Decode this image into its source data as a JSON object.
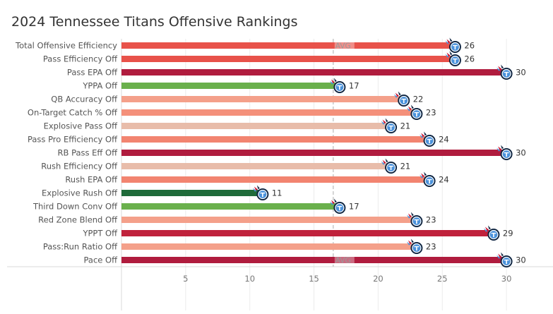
{
  "title": "2024 Tennessee Titans Offensive Rankings",
  "avg_label": "AVG",
  "chart_data": {
    "type": "bar",
    "orientation": "horizontal",
    "title": "2024 Tennessee Titans Offensive Rankings",
    "xlabel": "",
    "ylabel": "",
    "xlim": [
      0,
      32
    ],
    "xticks": [
      5,
      10,
      15,
      20,
      25,
      30
    ],
    "avg_line_value": 16.5,
    "grid": true,
    "categories": [
      "Total Offensive Efficiency",
      "Pass Efficiency Off",
      "Pass EPA Off",
      "YPPA Off",
      "QB Accuracy Off",
      "On-Target Catch % Off",
      "Explosive Pass Off",
      "Pass Pro Efficiency Off",
      "RB Pass Eff Off",
      "Rush Efficiency Off",
      "Rush EPA Off",
      "Explosive Rush Off",
      "Third Down Conv Off",
      "Red Zone Blend Off",
      "YPPT Off",
      "Pass:Run Ratio Off",
      "Pace Off"
    ],
    "values": [
      26,
      26,
      30,
      17,
      22,
      23,
      21,
      24,
      30,
      21,
      24,
      11,
      17,
      23,
      29,
      23,
      30
    ],
    "colors": [
      "#e8524a",
      "#e8524a",
      "#b01c3e",
      "#6ab04c",
      "#f4a08a",
      "#f4907a",
      "#e8bcaa",
      "#f28470",
      "#b01c3e",
      "#e8bcaa",
      "#f28470",
      "#1f6b3a",
      "#6ab04c",
      "#f4a08a",
      "#c0223c",
      "#f4a08a",
      "#b01c3e"
    ],
    "avg_label_rows": [
      0,
      16
    ]
  }
}
